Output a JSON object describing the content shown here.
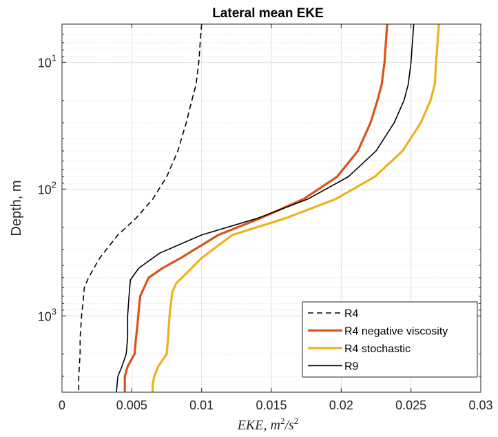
{
  "chart_data": {
    "type": "line",
    "title": "Lateral mean EKE",
    "xlabel": "EKE, m^2/s^2",
    "ylabel": "Depth, m",
    "xlim": [
      0,
      0.03
    ],
    "ylim": [
      5,
      4000
    ],
    "y_scale": "log",
    "y_reversed": true,
    "grid": true,
    "legend_position": "bottom-right",
    "x_tick_labels": [
      "0",
      "0.005",
      "0.01",
      "0.015",
      "0.02",
      "0.025",
      "0.03"
    ],
    "y_ticks": [
      {
        "value": 10,
        "base": "10",
        "exp": "1"
      },
      {
        "value": 100,
        "base": "10",
        "exp": "2"
      },
      {
        "value": 1000,
        "base": "10",
        "exp": "3"
      }
    ],
    "series": [
      {
        "name": "R4",
        "color": "#000000",
        "style": "dashed",
        "x": [
          0.01,
          0.0099,
          0.0098,
          0.0096,
          0.0093,
          0.0089,
          0.0083,
          0.0075,
          0.0065,
          0.0053,
          0.004,
          0.0027,
          0.0019,
          0.0016,
          0.0015,
          0.0014,
          0.0013,
          0.0013,
          0.0012,
          0.0012
        ],
        "y": [
          5,
          7,
          10,
          15,
          20,
          30,
          50,
          80,
          120,
          170,
          230,
          350,
          500,
          600,
          800,
          1000,
          1500,
          2000,
          3000,
          4000
        ]
      },
      {
        "name": "R4 negative viscosity",
        "color": "#D95319",
        "style": "solid",
        "x": [
          0.0233,
          0.0232,
          0.0231,
          0.0229,
          0.0226,
          0.0221,
          0.0212,
          0.0197,
          0.0173,
          0.0142,
          0.0112,
          0.0085,
          0.0072,
          0.0062,
          0.0056,
          0.0055,
          0.0054,
          0.0053,
          0.0052,
          0.0047,
          0.0045,
          0.0045
        ],
        "y": [
          5,
          7,
          10,
          15,
          20,
          30,
          50,
          80,
          120,
          170,
          230,
          350,
          420,
          500,
          700,
          900,
          1200,
          1500,
          2000,
          2500,
          3000,
          4000
        ]
      },
      {
        "name": "R4 stochastic",
        "color": "#EDB120",
        "style": "solid",
        "x": [
          0.027,
          0.0269,
          0.0268,
          0.0267,
          0.0264,
          0.0257,
          0.0244,
          0.0224,
          0.0196,
          0.016,
          0.0122,
          0.01,
          0.0086,
          0.0082,
          0.0079,
          0.0078,
          0.0077,
          0.0076,
          0.0075,
          0.0069,
          0.0066,
          0.0065,
          0.0065
        ],
        "y": [
          5,
          7,
          10,
          15,
          20,
          30,
          50,
          80,
          120,
          170,
          230,
          350,
          500,
          550,
          650,
          800,
          1000,
          1500,
          2000,
          2500,
          3000,
          3500,
          4000
        ]
      },
      {
        "name": "R9",
        "color": "#000000",
        "style": "solid",
        "x": [
          0.0252,
          0.0251,
          0.025,
          0.0248,
          0.0245,
          0.0238,
          0.0225,
          0.0205,
          0.0176,
          0.014,
          0.01,
          0.007,
          0.0055,
          0.0049,
          0.0048,
          0.0047,
          0.0047,
          0.0046,
          0.0043,
          0.004,
          0.0039
        ],
        "y": [
          5,
          7,
          10,
          15,
          20,
          30,
          50,
          80,
          120,
          170,
          230,
          320,
          420,
          520,
          700,
          1000,
          1500,
          2000,
          2500,
          3000,
          4000
        ]
      }
    ]
  }
}
